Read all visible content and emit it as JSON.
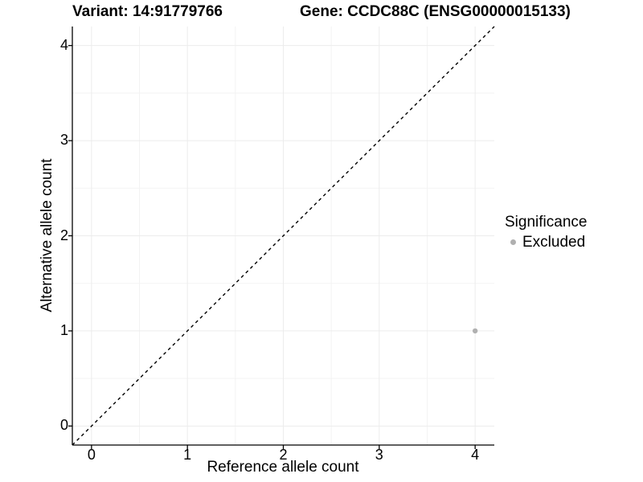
{
  "chart_data": {
    "type": "scatter",
    "titles": {
      "left": "Variant: 14:91779766",
      "right": "Gene: CCDC88C (ENSG00000015133)"
    },
    "xlabel": "Reference allele count",
    "ylabel": "Alternative allele count",
    "xlim": [
      -0.2,
      4.2
    ],
    "ylim": [
      -0.2,
      4.2
    ],
    "xticks": [
      0,
      1,
      2,
      3,
      4
    ],
    "yticks": [
      0,
      1,
      2,
      3,
      4
    ],
    "minor_xticks": [
      0.5,
      1.5,
      2.5,
      3.5
    ],
    "minor_yticks": [
      0.5,
      1.5,
      2.5,
      3.5
    ],
    "grid": {
      "on": true,
      "major_color": "#ececec",
      "minor_color": "#f3f3f3"
    },
    "reference_line": {
      "kind": "identity",
      "slope": 1,
      "intercept": 0,
      "style": "dashed",
      "color": "#000000"
    },
    "series": [
      {
        "name": "Excluded",
        "color": "#b0b0b0",
        "points": [
          {
            "x": 4,
            "y": 1
          }
        ]
      }
    ],
    "legend": {
      "title": "Significance",
      "position": "right",
      "items": [
        {
          "label": "Excluded",
          "color": "#b0b0b0"
        }
      ]
    },
    "axis_color": "#000000"
  }
}
